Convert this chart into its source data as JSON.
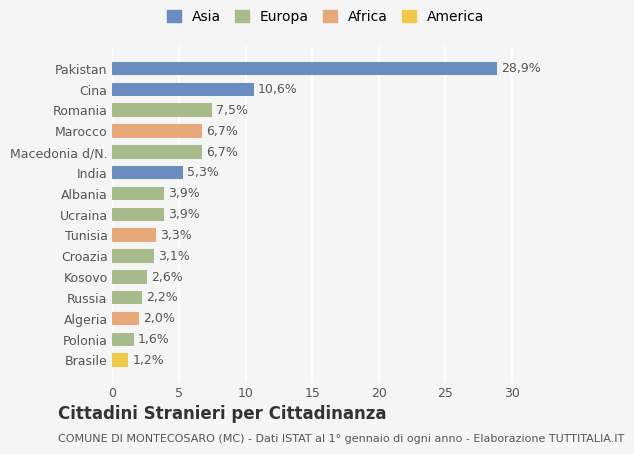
{
  "countries": [
    "Pakistan",
    "Cina",
    "Romania",
    "Marocco",
    "Macedonia d/N.",
    "India",
    "Albania",
    "Ucraina",
    "Tunisia",
    "Croazia",
    "Kosovo",
    "Russia",
    "Algeria",
    "Polonia",
    "Brasile"
  ],
  "values": [
    28.9,
    10.6,
    7.5,
    6.7,
    6.7,
    5.3,
    3.9,
    3.9,
    3.3,
    3.1,
    2.6,
    2.2,
    2.0,
    1.6,
    1.2
  ],
  "labels": [
    "28,9%",
    "10,6%",
    "7,5%",
    "6,7%",
    "6,7%",
    "5,3%",
    "3,9%",
    "3,9%",
    "3,3%",
    "3,1%",
    "2,6%",
    "2,2%",
    "2,0%",
    "1,6%",
    "1,2%"
  ],
  "continents": [
    "Asia",
    "Asia",
    "Europa",
    "Africa",
    "Europa",
    "Asia",
    "Europa",
    "Europa",
    "Africa",
    "Europa",
    "Europa",
    "Europa",
    "Africa",
    "Europa",
    "America"
  ],
  "colors": {
    "Asia": "#6b8cbf",
    "Europa": "#a8bb8a",
    "Africa": "#e8a97a",
    "America": "#f0c84a"
  },
  "legend_order": [
    "Asia",
    "Europa",
    "Africa",
    "America"
  ],
  "title": "Cittadini Stranieri per Cittadinanza",
  "subtitle": "COMUNE DI MONTECOSARO (MC) - Dati ISTAT al 1° gennaio di ogni anno - Elaborazione TUTTITALIA.IT",
  "xlim": [
    0,
    32
  ],
  "xticks": [
    0,
    5,
    10,
    15,
    20,
    25,
    30
  ],
  "bg_color": "#f5f5f5",
  "bar_height": 0.65,
  "label_fontsize": 9,
  "tick_fontsize": 9,
  "title_fontsize": 12,
  "subtitle_fontsize": 8
}
